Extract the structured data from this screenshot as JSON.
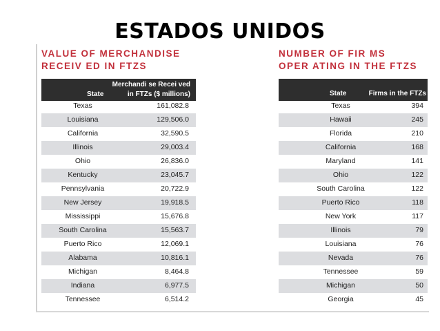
{
  "slide_title": "ESTADOS UNIDOS",
  "left_table": {
    "heading_line1": "Value of Merchandise",
    "heading_line2": "Receiv ed in Ftzs",
    "header_state": "State",
    "header_value_line1": "Merchandi se  Recei ved",
    "header_value_line2": "in FTZs ($ millions)",
    "rows": [
      {
        "state": "Texas",
        "value": "161,082.8"
      },
      {
        "state": "Louisiana",
        "value": "129,506.0"
      },
      {
        "state": "California",
        "value": "32,590.5"
      },
      {
        "state": "Illinois",
        "value": "29,003.4"
      },
      {
        "state": "Ohio",
        "value": "26,836.0"
      },
      {
        "state": "Kentucky",
        "value": "23,045.7"
      },
      {
        "state": "Pennsylvania",
        "value": "20,722.9"
      },
      {
        "state": "New Jersey",
        "value": "19,918.5"
      },
      {
        "state": "Mississippi",
        "value": "15,676.8"
      },
      {
        "state": "South Carolina",
        "value": "15,563.7"
      },
      {
        "state": "Puerto Rico",
        "value": "12,069.1"
      },
      {
        "state": "Alabama",
        "value": "10,816.1"
      },
      {
        "state": "Michigan",
        "value": "8,464.8"
      },
      {
        "state": "Indiana",
        "value": "6,977.5"
      },
      {
        "state": "Tennessee",
        "value": "6,514.2"
      }
    ]
  },
  "right_table": {
    "heading_line1": "Number of Fir ms",
    "heading_line2": "Oper ating in the Ftzs",
    "header_state": "State",
    "header_value": "Firms  in the FTZs",
    "rows": [
      {
        "state": "Texas",
        "value": "394"
      },
      {
        "state": "Hawaii",
        "value": "245"
      },
      {
        "state": "Florida",
        "value": "210"
      },
      {
        "state": "California",
        "value": "168"
      },
      {
        "state": "Maryland",
        "value": "141"
      },
      {
        "state": "Ohio",
        "value": "122"
      },
      {
        "state": "South Carolina",
        "value": "122"
      },
      {
        "state": "Puerto Rico",
        "value": "118"
      },
      {
        "state": "New York",
        "value": "117"
      },
      {
        "state": "Illinois",
        "value": "79"
      },
      {
        "state": "Louisiana",
        "value": "76"
      },
      {
        "state": "Nevada",
        "value": "76"
      },
      {
        "state": "Tennessee",
        "value": "59"
      },
      {
        "state": "Michigan",
        "value": "50"
      },
      {
        "state": "Georgia",
        "value": "45"
      }
    ]
  }
}
